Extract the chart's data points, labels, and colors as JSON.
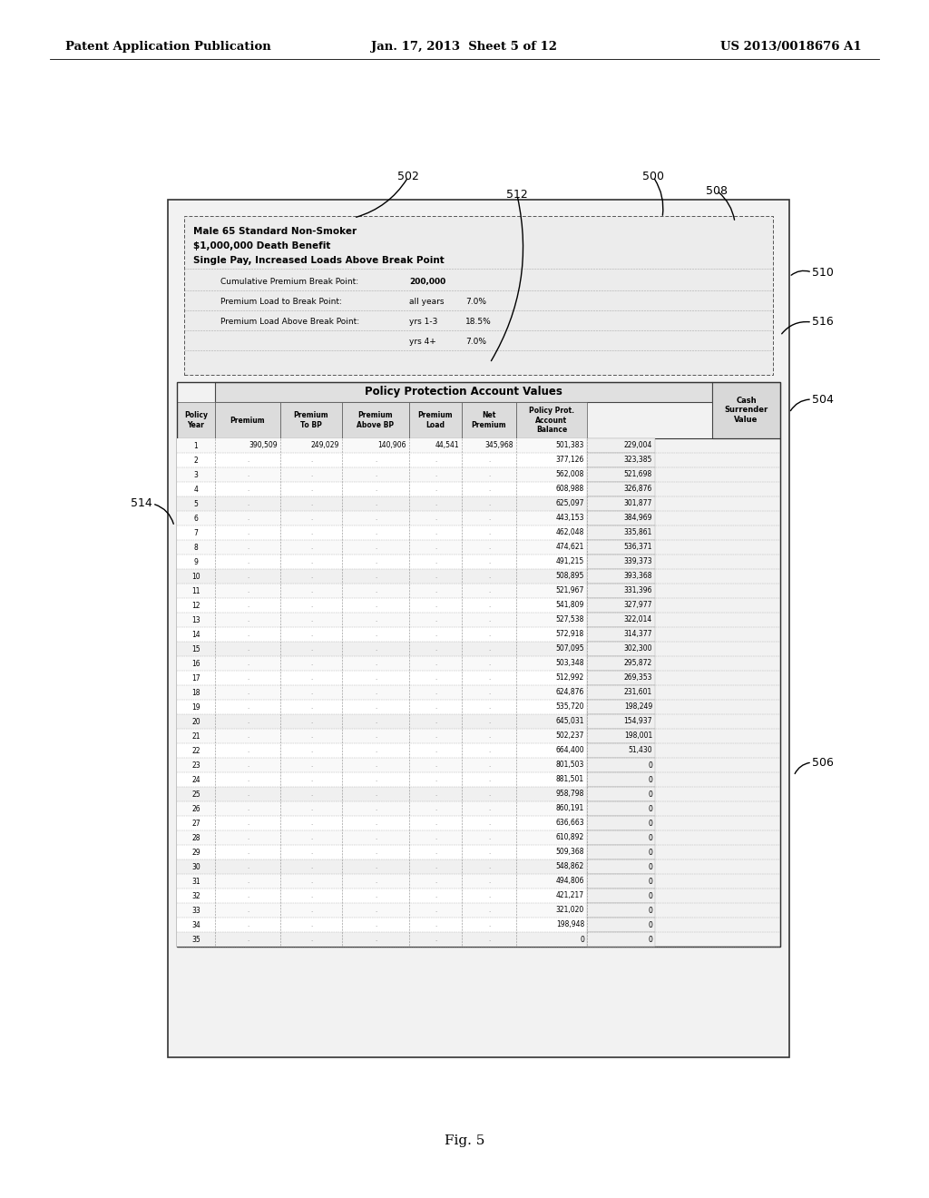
{
  "page_title_left": "Patent Application Publication",
  "page_title_center": "Jan. 17, 2013  Sheet 5 of 12",
  "page_title_right": "US 2013/0018676 A1",
  "fig_label": "Fig. 5",
  "header_lines": [
    "Male 65 Standard Non-Smoker",
    "$1,000,000 Death Benefit",
    "Single Pay, Increased Loads Above Break Point"
  ],
  "break_point_labels": [
    "Cumulative Premium Break Point:",
    "Premium Load to Break Point:",
    "Premium Load Above Break Point:"
  ],
  "break_point_values": [
    [
      "",
      "200,000"
    ],
    [
      "all years",
      "7.0%"
    ],
    [
      "yrs 1-3",
      "18.5%"
    ],
    [
      "yrs 4+",
      "7.0%"
    ]
  ],
  "main_table_title": "Policy Protection Account Values",
  "table_data": [
    [
      1,
      "390,509",
      "249,029",
      "140,906",
      "44,541",
      "345,968",
      "501,383",
      "229,004"
    ],
    [
      2,
      "",
      "",
      "",
      "",
      "",
      "377,126",
      "323,385"
    ],
    [
      3,
      "",
      "",
      "",
      "",
      "",
      "562,008",
      "521,698"
    ],
    [
      4,
      "",
      "",
      "",
      "",
      "",
      "608,988",
      "326,876"
    ],
    [
      5,
      "",
      "",
      "",
      "",
      "",
      "625,097",
      "301,877"
    ],
    [
      6,
      "",
      "",
      "",
      "",
      "",
      "443,153",
      "384,969"
    ],
    [
      7,
      "",
      "",
      "",
      "",
      "",
      "462,048",
      "335,861"
    ],
    [
      8,
      "",
      "",
      "",
      "",
      "",
      "474,621",
      "536,371"
    ],
    [
      9,
      "",
      "",
      "",
      "",
      "",
      "491,215",
      "339,373"
    ],
    [
      10,
      "",
      "",
      "",
      "",
      "",
      "508,895",
      "393,368"
    ],
    [
      11,
      "",
      "",
      "",
      "",
      "",
      "521,967",
      "331,396"
    ],
    [
      12,
      "",
      "",
      "",
      "",
      "",
      "541,809",
      "327,977"
    ],
    [
      13,
      "",
      "",
      "",
      "",
      "",
      "527,538",
      "322,014"
    ],
    [
      14,
      "",
      "",
      "",
      "",
      "",
      "572,918",
      "314,377"
    ],
    [
      15,
      "",
      "",
      "",
      "",
      "",
      "507,095",
      "302,300"
    ],
    [
      16,
      "",
      "",
      "",
      "",
      "",
      "503,348",
      "295,872"
    ],
    [
      17,
      "",
      "",
      "",
      "",
      "",
      "512,992",
      "269,353"
    ],
    [
      18,
      "",
      "",
      "",
      "",
      "",
      "624,876",
      "231,601"
    ],
    [
      19,
      "",
      "",
      "",
      "",
      "",
      "535,720",
      "198,249"
    ],
    [
      20,
      "",
      "",
      "",
      "",
      "",
      "645,031",
      "154,937"
    ],
    [
      21,
      "",
      "",
      "",
      "",
      "",
      "502,237",
      "198,001"
    ],
    [
      22,
      "",
      "",
      "",
      "",
      "",
      "664,400",
      "51,430"
    ],
    [
      23,
      "",
      "",
      "",
      "",
      "",
      "801,503",
      "0"
    ],
    [
      24,
      "",
      "",
      "",
      "",
      "",
      "881,501",
      "0"
    ],
    [
      25,
      "",
      "",
      "",
      "",
      "",
      "958,798",
      "0"
    ],
    [
      26,
      "",
      "",
      "",
      "",
      "",
      "860,191",
      "0"
    ],
    [
      27,
      "",
      "",
      "",
      "",
      "",
      "636,663",
      "0"
    ],
    [
      28,
      "",
      "",
      "",
      "",
      "",
      "610,892",
      "0"
    ],
    [
      29,
      "",
      "",
      "",
      "",
      "",
      "509,368",
      "0"
    ],
    [
      30,
      "",
      "",
      "",
      "",
      "",
      "548,862",
      "0"
    ],
    [
      31,
      "",
      "",
      "",
      "",
      "",
      "494,806",
      "0"
    ],
    [
      32,
      "",
      "",
      "",
      "",
      "",
      "421,217",
      "0"
    ],
    [
      33,
      "",
      "",
      "",
      "",
      "",
      "321,020",
      "0"
    ],
    [
      34,
      "",
      "",
      "",
      "",
      "",
      "198,948",
      "0"
    ],
    [
      35,
      "",
      "",
      "",
      "",
      "",
      "0",
      "0"
    ]
  ],
  "bg_color": "#ffffff"
}
